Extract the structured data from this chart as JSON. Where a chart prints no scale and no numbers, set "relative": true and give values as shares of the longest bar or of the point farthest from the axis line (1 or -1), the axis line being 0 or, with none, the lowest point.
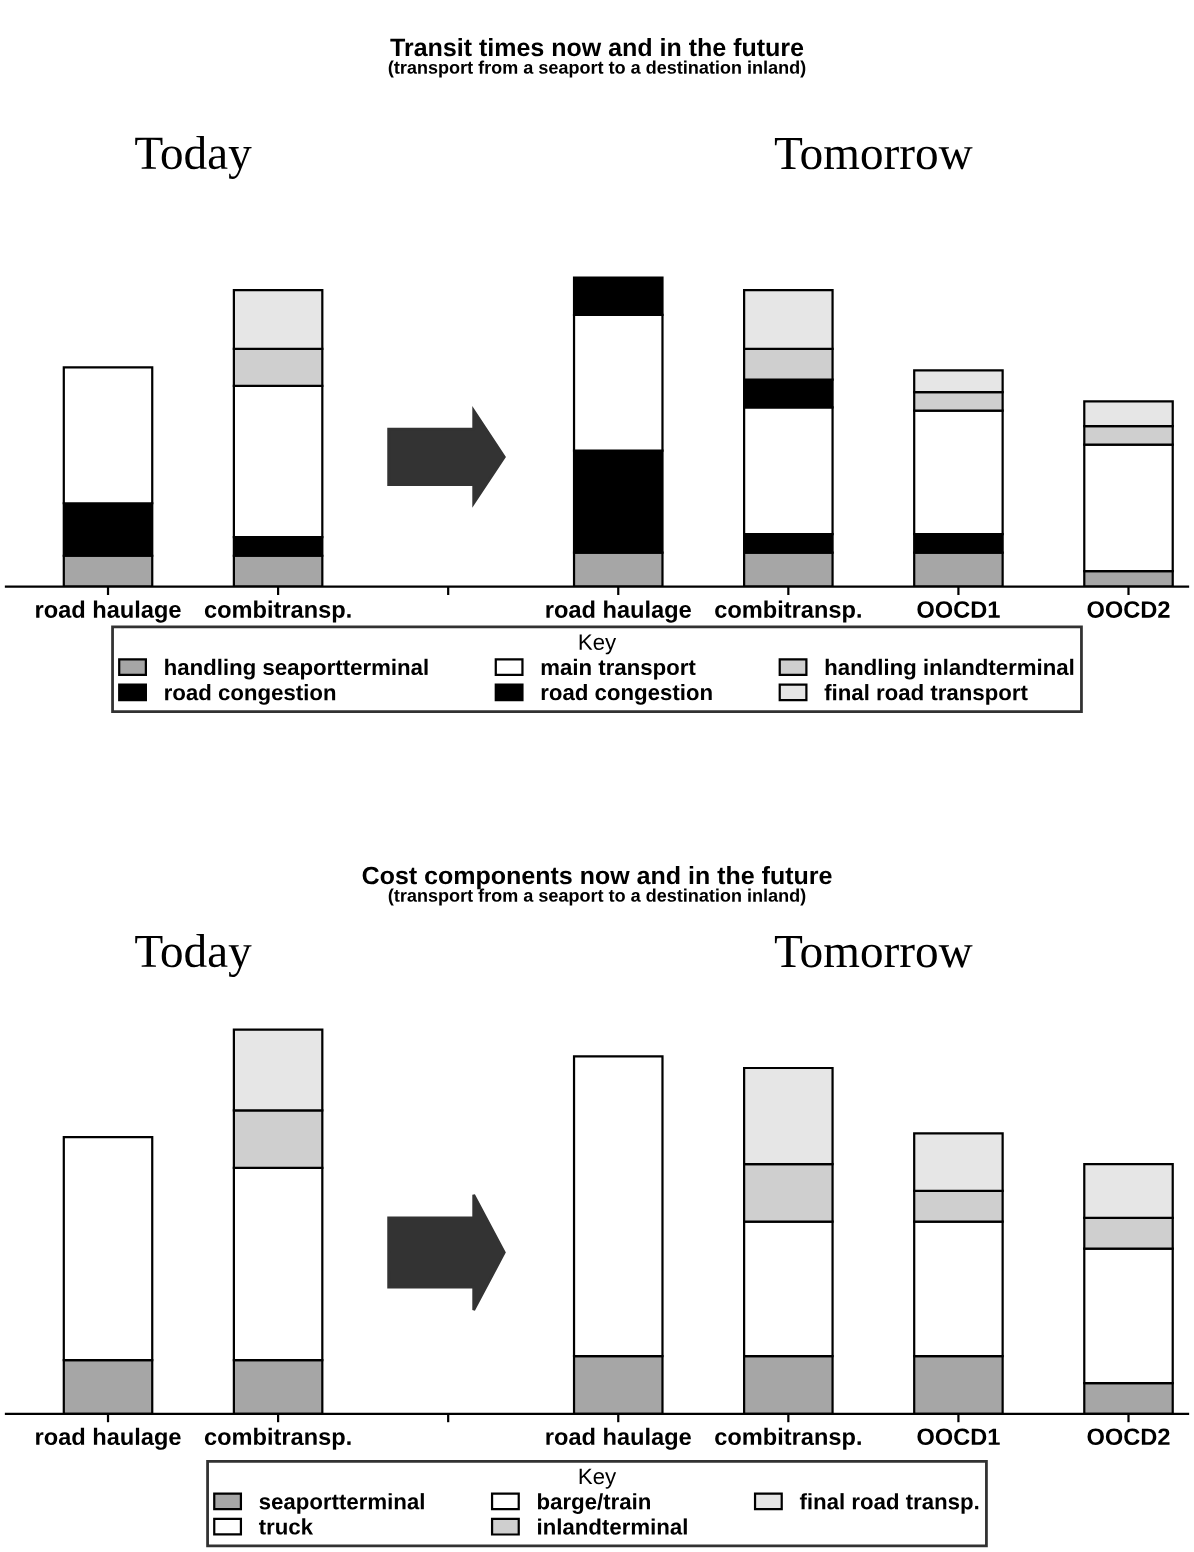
{
  "chart_data": [
    {
      "type": "bar",
      "title": "Transit times now and in the future",
      "subtitle": "(transport from a seaport to a destination inland)",
      "annotations": [
        "Today",
        "Tomorrow"
      ],
      "categories": [
        "road haulage",
        "combitransp.",
        null,
        "road haulage",
        "combitransp.",
        "OOCD1",
        "OOCD2"
      ],
      "stacked": true,
      "relative": true,
      "legend": "bottom",
      "legend_title": "Key",
      "series": [
        {
          "name": "handling seaportterminal",
          "color": "#a6a6a6",
          "values": [
            0.1,
            0.1,
            null,
            0.11,
            0.11,
            0.11,
            0.05
          ]
        },
        {
          "name": "road congestion",
          "color": "#000000",
          "values": [
            0.17,
            0.06,
            null,
            0.33,
            0.06,
            0.06,
            0
          ]
        },
        {
          "name": "main transport",
          "color": "#ffffff",
          "values": [
            0.44,
            0.49,
            null,
            0.44,
            0.41,
            0.4,
            0.41
          ]
        },
        {
          "name": "road congestion",
          "color": "#000000",
          "values": [
            0,
            0,
            null,
            0.12,
            0.09,
            0,
            0
          ]
        },
        {
          "name": "handling inlandterminal",
          "color": "#cfcfcf",
          "values": [
            0,
            0.12,
            null,
            0,
            0.1,
            0.06,
            0.06
          ]
        },
        {
          "name": "final road transport",
          "color": "#e6e6e6",
          "values": [
            0,
            0.19,
            null,
            0,
            0.19,
            0.07,
            0.08
          ]
        }
      ]
    },
    {
      "type": "bar",
      "title": "Cost components now and in the future",
      "subtitle": "(transport from a seaport to a destination inland)",
      "annotations": [
        "Today",
        "Tomorrow"
      ],
      "categories": [
        "road haulage",
        "combitransp.",
        null,
        "road haulage",
        "combitransp.",
        "OOCD1",
        "OOCD2"
      ],
      "stacked": true,
      "relative": true,
      "legend": "bottom",
      "legend_title": "Key",
      "series": [
        {
          "name": "seaportterminal",
          "color": "#a6a6a6",
          "values": [
            0.14,
            0.14,
            null,
            0.15,
            0.15,
            0.15,
            0.08
          ]
        },
        {
          "name": "truck",
          "color": "#ffffff",
          "values": [
            0.58,
            0,
            null,
            0.78,
            0,
            0,
            0
          ]
        },
        {
          "name": "barge/train",
          "color": "#ffffff",
          "values": [
            0,
            0.5,
            null,
            0,
            0.35,
            0.35,
            0.35
          ]
        },
        {
          "name": "inlandterminal",
          "color": "#cfcfcf",
          "values": [
            0,
            0.15,
            null,
            0,
            0.15,
            0.08,
            0.08
          ]
        },
        {
          "name": "final road transp.",
          "color": "#e6e6e6",
          "values": [
            0,
            0.21,
            null,
            0,
            0.25,
            0.15,
            0.14
          ]
        }
      ]
    }
  ]
}
